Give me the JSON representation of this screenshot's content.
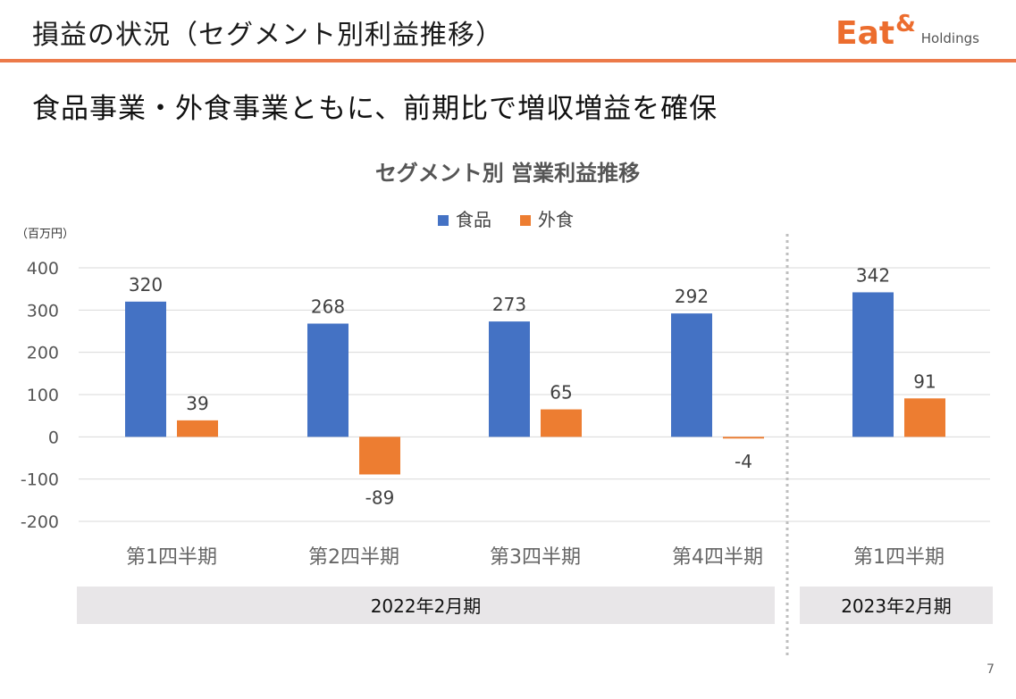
{
  "header": {
    "title": "損益の状況（セグメント別利益推移）",
    "logo_main": "Eat",
    "logo_amp": "&",
    "logo_sub": "Holdings"
  },
  "subtitle": "食品事業・外食事業ともに、前期比で増収増益を確保",
  "page_number": "7",
  "colors": {
    "accent": "#ec6d2e",
    "food": "#4472c4",
    "restaurant": "#ed7d31",
    "period_band": "#e8e6e8"
  },
  "chart_data": {
    "type": "bar",
    "title": "セグメント別 営業利益推移",
    "unit_label": "（百万円）",
    "categories": [
      "第1四半期",
      "第2四半期",
      "第3四半期",
      "第4四半期",
      "第1四半期"
    ],
    "series": [
      {
        "name": "食品",
        "values": [
          320,
          268,
          273,
          292,
          342
        ]
      },
      {
        "name": "外食",
        "values": [
          39,
          -89,
          65,
          -4,
          91
        ]
      }
    ],
    "data_labels": [
      [
        "320",
        "268",
        "273",
        "292",
        "342"
      ],
      [
        "39",
        "-89",
        "65",
        "-4",
        "91"
      ]
    ],
    "ylim": [
      -200,
      400
    ],
    "yticks": [
      -200,
      -100,
      0,
      100,
      200,
      300,
      400
    ],
    "ytick_labels": [
      "-200",
      "-100",
      "0",
      "100",
      "200",
      "300",
      "400"
    ],
    "gridlines": true,
    "legend_position": "top-center",
    "periods": [
      {
        "label": "2022年2月期",
        "categories": [
          0,
          1,
          2,
          3
        ]
      },
      {
        "label": "2023年2月期",
        "categories": [
          4
        ]
      }
    ]
  }
}
